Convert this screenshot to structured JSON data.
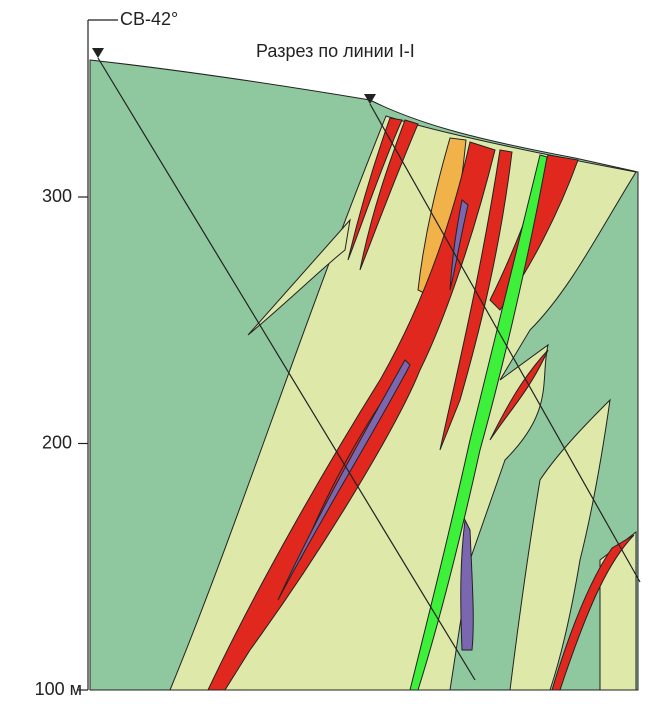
{
  "direction": "СВ-42°",
  "title": "Разрез по линии I-I",
  "elevation_axis": {
    "ticks": [
      300,
      200,
      {
        "value": 100,
        "label": "100 м"
      }
    ]
  }
}
